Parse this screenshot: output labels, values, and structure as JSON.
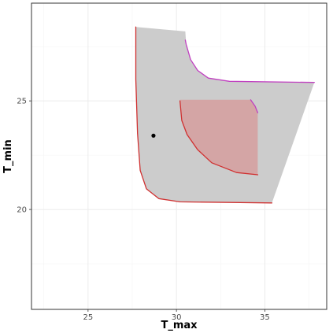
{
  "chart_data": {
    "type": "area",
    "title": "",
    "xlabel": "T_max",
    "ylabel": "T_min",
    "xlim": [
      21.8,
      38.5
    ],
    "ylim": [
      15.4,
      29.5
    ],
    "x_ticks": [
      25,
      30,
      35
    ],
    "y_ticks": [
      20,
      25
    ],
    "x_minor_ticks": [
      22.5,
      27.5,
      32.5,
      37.5
    ],
    "y_minor_ticks": [
      17.5,
      22.5,
      27.5
    ],
    "grid": true,
    "legend": "none",
    "colors": {
      "outer_fill": "#cccccc",
      "inner_fill": "#d4a5a5",
      "red_curve": "#d03030",
      "magenta_curve": "#c040c0",
      "point": "#000000",
      "grid_major": "#ebebeb",
      "grid_minor": "#f4f4f4",
      "panel_border": "#333333"
    },
    "regions": [
      {
        "role": "outer",
        "polygon": [
          [
            27.7,
            28.4
          ],
          [
            30.5,
            28.2
          ],
          [
            30.55,
            27.6
          ],
          [
            30.8,
            26.9
          ],
          [
            31.2,
            26.4
          ],
          [
            31.8,
            26.05
          ],
          [
            33.0,
            25.9
          ],
          [
            37.8,
            25.85
          ],
          [
            35.4,
            20.3
          ],
          [
            30.2,
            20.35
          ],
          [
            29.0,
            20.5
          ],
          [
            28.3,
            20.95
          ],
          [
            27.95,
            21.8
          ],
          [
            27.8,
            23.5
          ],
          [
            27.7,
            26.0
          ]
        ]
      },
      {
        "role": "inner",
        "polygon": [
          [
            30.2,
            25.05
          ],
          [
            34.2,
            25.05
          ],
          [
            34.45,
            24.75
          ],
          [
            34.6,
            24.45
          ],
          [
            34.6,
            21.6
          ],
          [
            33.4,
            21.7
          ],
          [
            32.0,
            22.15
          ],
          [
            31.2,
            22.75
          ],
          [
            30.6,
            23.45
          ],
          [
            30.3,
            24.1
          ]
        ]
      }
    ],
    "curves": [
      {
        "role": "outer-left-bottom",
        "color": "red",
        "points": [
          [
            27.7,
            28.4
          ],
          [
            27.7,
            26.0
          ],
          [
            27.8,
            23.5
          ],
          [
            27.95,
            21.8
          ],
          [
            28.3,
            20.95
          ],
          [
            29.0,
            20.5
          ],
          [
            30.2,
            20.35
          ],
          [
            35.4,
            20.3
          ]
        ]
      },
      {
        "role": "outer-upper-right",
        "color": "magenta",
        "points": [
          [
            30.5,
            27.8
          ],
          [
            30.55,
            27.6
          ],
          [
            30.8,
            26.9
          ],
          [
            31.2,
            26.4
          ],
          [
            31.8,
            26.05
          ],
          [
            33.0,
            25.9
          ],
          [
            37.8,
            25.85
          ]
        ]
      },
      {
        "role": "inner-lower-left",
        "color": "red",
        "points": [
          [
            30.2,
            25.0
          ],
          [
            30.3,
            24.1
          ],
          [
            30.6,
            23.45
          ],
          [
            31.2,
            22.75
          ],
          [
            32.0,
            22.15
          ],
          [
            33.4,
            21.7
          ],
          [
            34.6,
            21.6
          ]
        ]
      },
      {
        "role": "inner-upper-right",
        "color": "magenta",
        "points": [
          [
            34.2,
            25.05
          ],
          [
            34.45,
            24.75
          ],
          [
            34.6,
            24.45
          ]
        ]
      }
    ],
    "points": [
      {
        "x": 28.7,
        "y": 23.4
      }
    ]
  }
}
